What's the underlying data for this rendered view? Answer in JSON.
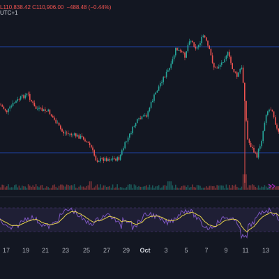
{
  "legend": {
    "prefix": "UTC+1",
    "price_values": "L110,838.42  C110,906.00",
    "change": "−488.48 (−0.44%)"
  },
  "x_axis": {
    "labels": [
      "17",
      "19",
      "21",
      "23",
      "25",
      "27",
      "29",
      "Oct",
      "3",
      "5",
      "7",
      "9",
      "11",
      "13"
    ]
  },
  "colors": {
    "background": "#131722",
    "up": "#26a69a",
    "down": "#ef5350",
    "hline": "#2962ff",
    "rsi_line": "#7e57c2",
    "rsi_ma": "#e8d44d",
    "rsi_band": "#7e57c2"
  },
  "icons": {
    "goto_realtime": "double-chevron-right-icon"
  }
}
